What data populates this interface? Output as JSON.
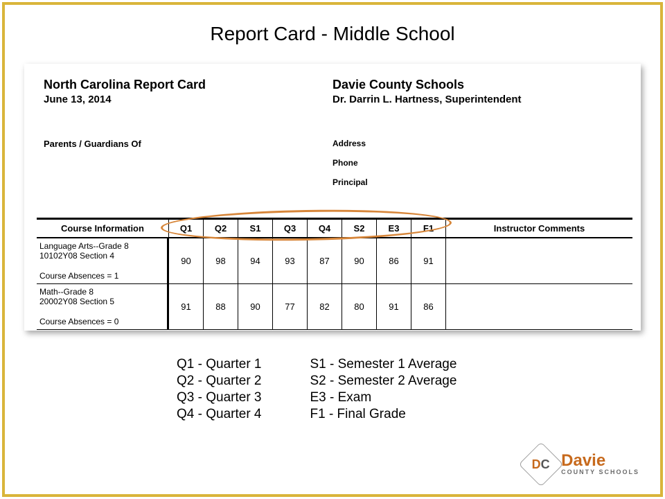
{
  "slide_title": "Report Card - Middle School",
  "header": {
    "report_title": "North Carolina Report Card",
    "report_date": "June 13, 2014",
    "district": "Davie County Schools",
    "superintendent": "Dr. Darrin L. Hartness, Superintendent",
    "parents_label": "Parents / Guardians Of",
    "address_label": "Address",
    "phone_label": "Phone",
    "principal_label": "Principal"
  },
  "table": {
    "col_course": "Course Information",
    "cols": [
      "Q1",
      "Q2",
      "S1",
      "Q3",
      "Q4",
      "S2",
      "E3",
      "F1"
    ],
    "col_comments": "Instructor Comments",
    "rows": [
      {
        "course_line1": "Language Arts--Grade 8",
        "course_line2": "10102Y08 Section 4",
        "absences": "Course Absences = 1",
        "grades": [
          "90",
          "98",
          "94",
          "93",
          "87",
          "90",
          "86",
          "91"
        ]
      },
      {
        "course_line1": "Math--Grade 8",
        "course_line2": "20002Y08 Section 5",
        "absences": "Course Absences = 0",
        "grades": [
          "91",
          "88",
          "90",
          "77",
          "82",
          "80",
          "91",
          "86"
        ]
      }
    ]
  },
  "legend": {
    "left": [
      "Q1 - Quarter 1",
      "Q2 - Quarter 2",
      "Q3 - Quarter 3",
      "Q4 - Quarter 4"
    ],
    "right": [
      "S1 - Semester 1 Average",
      "S2 - Semester 2 Average",
      "E3 - Exam",
      "F1 - Final Grade"
    ]
  },
  "logo": {
    "name": "Davie",
    "sub": "COUNTY SCHOOLS"
  },
  "colors": {
    "frame_border": "#d9b53a",
    "highlight_ring": "#d7863a",
    "logo_accent": "#c76a1d"
  }
}
